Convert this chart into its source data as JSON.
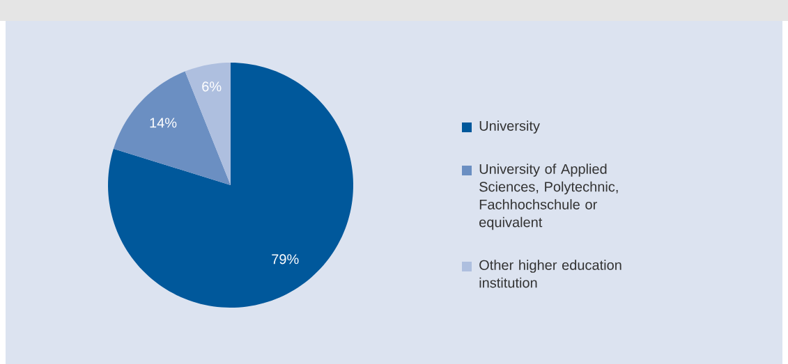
{
  "chart_data": {
    "type": "pie",
    "categories": [
      "University",
      "University of Applied Sciences, Polytechnic, Fachhochschule or equivalent",
      "Other higher education institution"
    ],
    "values": [
      79,
      14,
      6
    ],
    "value_labels": [
      "79%",
      "14%",
      "6%"
    ],
    "colors": [
      "#00589b",
      "#6b8fc2",
      "#aebfdf"
    ],
    "legend": "right"
  }
}
